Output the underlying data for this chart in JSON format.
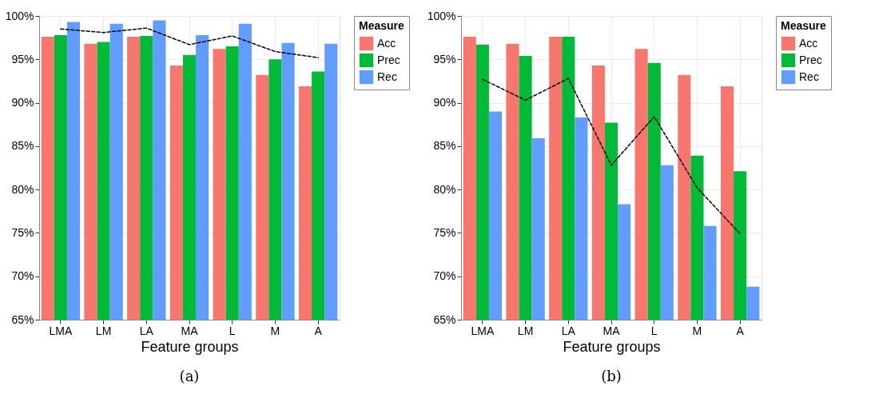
{
  "chart_data": [
    {
      "type": "bar",
      "title": "(a)",
      "xlabel": "Feature groups",
      "legend_title": "Measure",
      "legend": "right",
      "grid": true,
      "categories": [
        "LMA",
        "LM",
        "LA",
        "MA",
        "L",
        "M",
        "A"
      ],
      "ylim": [
        65,
        100
      ],
      "yticks": [
        {
          "value": 65,
          "label": "65%"
        },
        {
          "value": 70,
          "label": "70%"
        },
        {
          "value": 75,
          "label": "75%"
        },
        {
          "value": 80,
          "label": "80%"
        },
        {
          "value": 85,
          "label": "85%"
        },
        {
          "value": 90,
          "label": "90%"
        },
        {
          "value": 95,
          "label": "95%"
        },
        {
          "value": 100,
          "label": "100%"
        }
      ],
      "series": [
        {
          "name": "Acc",
          "color": "#f8766d",
          "values": [
            97.6,
            96.8,
            97.6,
            94.3,
            96.2,
            93.2,
            91.9
          ]
        },
        {
          "name": "Prec",
          "color": "#00ba38",
          "values": [
            97.8,
            97.0,
            97.7,
            95.5,
            96.5,
            95.0,
            93.6
          ]
        },
        {
          "name": "Rec",
          "color": "#619cff",
          "values": [
            99.3,
            99.1,
            99.5,
            97.8,
            99.1,
            96.9,
            96.8
          ]
        },
        {
          "type": "line",
          "color": "#000000",
          "line_style": "dashed",
          "values": [
            98.5,
            98.1,
            98.6,
            96.7,
            97.7,
            95.9,
            95.2
          ]
        }
      ]
    },
    {
      "type": "bar",
      "title": "(b)",
      "xlabel": "Feature groups",
      "legend_title": "Measure",
      "legend": "right",
      "grid": true,
      "categories": [
        "LMA",
        "LM",
        "LA",
        "MA",
        "L",
        "M",
        "A"
      ],
      "ylim": [
        65,
        100
      ],
      "yticks": [
        {
          "value": 65,
          "label": "65%"
        },
        {
          "value": 70,
          "label": "70%"
        },
        {
          "value": 75,
          "label": "75%"
        },
        {
          "value": 80,
          "label": "80%"
        },
        {
          "value": 85,
          "label": "85%"
        },
        {
          "value": 90,
          "label": "90%"
        },
        {
          "value": 95,
          "label": "95%"
        },
        {
          "value": 100,
          "label": "100%"
        }
      ],
      "series": [
        {
          "name": "Acc",
          "color": "#f8766d",
          "values": [
            97.6,
            96.8,
            97.6,
            94.3,
            96.2,
            93.2,
            91.9
          ]
        },
        {
          "name": "Prec",
          "color": "#00ba38",
          "values": [
            96.7,
            95.4,
            97.6,
            87.7,
            94.6,
            83.9,
            82.1
          ]
        },
        {
          "name": "Rec",
          "color": "#619cff",
          "values": [
            89.0,
            85.9,
            88.3,
            78.3,
            82.8,
            75.8,
            68.8
          ]
        },
        {
          "type": "line",
          "color": "#000000",
          "line_style": "dashed",
          "values": [
            92.7,
            90.3,
            92.8,
            82.8,
            88.4,
            80.2,
            74.9
          ]
        }
      ]
    }
  ]
}
